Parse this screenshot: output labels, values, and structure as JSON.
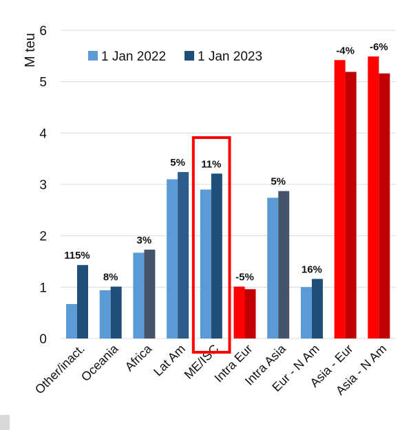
{
  "chart_data": {
    "type": "bar",
    "title": "",
    "xlabel": "",
    "ylabel": "M teu",
    "ylim": [
      0,
      6
    ],
    "yticks": [
      "0",
      "1",
      "2",
      "3",
      "4",
      "5",
      "6"
    ],
    "grid": true,
    "legend_position": "top-left",
    "categories": [
      "Other/inact.",
      "Oceania",
      "Africa",
      "Lat Am",
      "ME/ISC",
      "Intra Eur",
      "Intra Asia",
      "Eur - N Am",
      "Asia - Eur",
      "Asia - N Am"
    ],
    "series": [
      {
        "name": "1 Jan 2022",
        "values": [
          0.67,
          0.94,
          1.67,
          3.1,
          2.9,
          1.01,
          2.74,
          1.0,
          5.42,
          5.49
        ]
      },
      {
        "name": "1 Jan 2023",
        "values": [
          1.43,
          1.01,
          1.73,
          3.24,
          3.21,
          0.96,
          2.87,
          1.16,
          5.19,
          5.16
        ]
      }
    ],
    "change_labels": [
      "115%",
      "8%",
      "3%",
      "5%",
      "11%",
      "-5%",
      "5%",
      "16%",
      "-4%",
      "-6%"
    ],
    "highlighted_category": "ME/ISC",
    "colors": {
      "series_2022": "#5b9bd5",
      "series_2023": "#1f4e79",
      "africa_2023": "#44546a",
      "lat_am_2023": "#2e5c8a",
      "intra_asia_2023": "#44546a",
      "declining_2022": "#ff0000",
      "declining_2023": "#c00000",
      "highlight_box": "#ff0000",
      "grid": "#d9d9d9"
    }
  }
}
